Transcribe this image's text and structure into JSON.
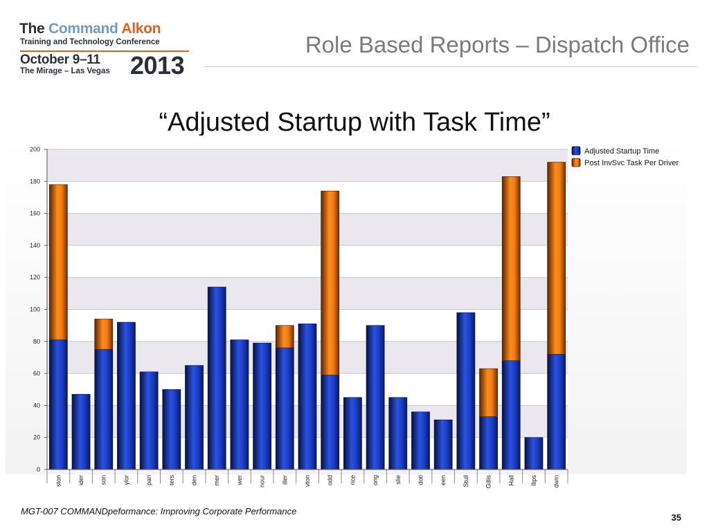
{
  "logo": {
    "line1_the": "The",
    "line1_command": "Command",
    "line1_alkon": "Alkon",
    "line2": "Training and Technology Conference",
    "date": "October 9–11",
    "venue": "The Mirage – Las Vegas",
    "year": "2013"
  },
  "header": {
    "title": "Role Based Reports – Dispatch Office"
  },
  "slide": {
    "title": "“Adjusted Startup with Task Time”"
  },
  "footer": {
    "text": "MGT-007 COMMANDpeformance: Improving Corporate Performance",
    "page": "35"
  },
  "chart_data": {
    "type": "bar",
    "stacked": true,
    "categories": [
      "ston",
      "ider",
      "son",
      "ylor",
      "pari",
      "ters",
      "den",
      "mer",
      "wer",
      "nour",
      "iller",
      "vton",
      "odd",
      "rice",
      "ong",
      "slie",
      "doti",
      "een",
      "Stull",
      "Gillis",
      "Hall",
      "llips",
      "dwin"
    ],
    "series": [
      {
        "name": "Adjusted Startup Time",
        "color": "#1f3fbf",
        "values": [
          81,
          47,
          75,
          92,
          61,
          50,
          65,
          114,
          81,
          79,
          76,
          91,
          59,
          45,
          90,
          45,
          36,
          31,
          98,
          33,
          68,
          20,
          72
        ]
      },
      {
        "name": "Post InvSvc Task Per Driver",
        "color": "#f07b12",
        "values": [
          97,
          0,
          19,
          0,
          0,
          0,
          0,
          0,
          0,
          0,
          14,
          0,
          115,
          0,
          0,
          0,
          0,
          0,
          0,
          30,
          115,
          0,
          120
        ]
      }
    ],
    "yticks": [
      0,
      20,
      40,
      60,
      80,
      100,
      120,
      140,
      160,
      180,
      200
    ],
    "ylim": [
      0,
      200
    ],
    "grid": true,
    "legend": "top-right"
  }
}
